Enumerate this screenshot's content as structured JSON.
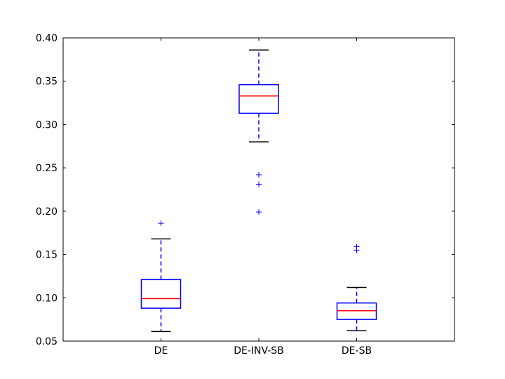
{
  "chart_data": {
    "type": "boxplot",
    "title": "",
    "xlabel": "",
    "ylabel": "",
    "ylim": [
      0.05,
      0.4
    ],
    "yticks": [
      "0.05",
      "0.10",
      "0.15",
      "0.20",
      "0.25",
      "0.30",
      "0.35",
      "0.40"
    ],
    "grid": false,
    "categories": [
      "DE",
      "DE-INV-SB",
      "DE-SB"
    ],
    "series": [
      {
        "category": "DE",
        "whisker_low": 0.061,
        "q1": 0.088,
        "median": 0.099,
        "q3": 0.121,
        "whisker_high": 0.168,
        "outliers": [
          0.186
        ]
      },
      {
        "category": "DE-INV-SB",
        "whisker_low": 0.28,
        "q1": 0.313,
        "median": 0.333,
        "q3": 0.346,
        "whisker_high": 0.386,
        "outliers": [
          0.242,
          0.231,
          0.199
        ]
      },
      {
        "category": "DE-SB",
        "whisker_low": 0.062,
        "q1": 0.075,
        "median": 0.085,
        "q3": 0.094,
        "whisker_high": 0.112,
        "outliers": [
          0.159,
          0.155
        ]
      }
    ],
    "colors": {
      "box": "#0000ff",
      "median": "#ff0000",
      "whisker_cap": "#000000",
      "whisker_line": "#0000ff",
      "outlier": "#0000ff"
    }
  }
}
